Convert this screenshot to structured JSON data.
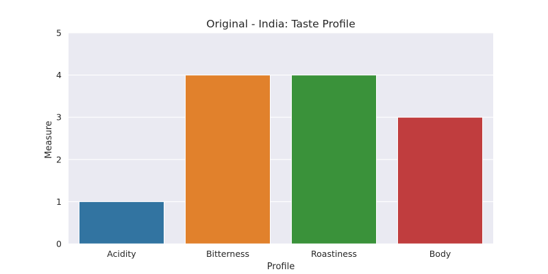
{
  "chart_data": {
    "type": "bar",
    "title": "Original - India: Taste Profile",
    "xlabel": "Profile",
    "ylabel": "Measure",
    "categories": [
      "Acidity",
      "Bitterness",
      "Roastiness",
      "Body"
    ],
    "values": [
      1,
      4,
      4,
      3
    ],
    "colors": [
      "#3274a1",
      "#e1812c",
      "#3a923a",
      "#c03d3e"
    ],
    "ylim": [
      0,
      5
    ],
    "yticks": [
      0,
      1,
      2,
      3,
      4,
      5
    ],
    "grid": true,
    "background": "#eaeaf2",
    "legend": "none"
  }
}
